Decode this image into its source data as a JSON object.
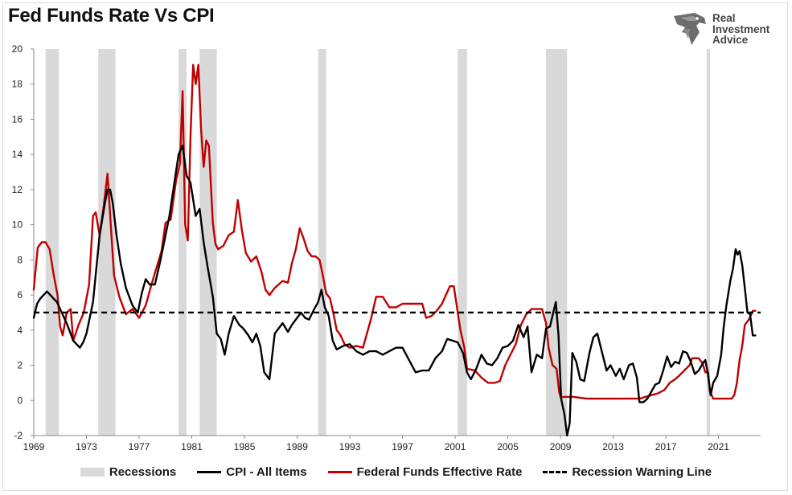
{
  "title": "Fed Funds Rate Vs CPI",
  "logo": {
    "lines": [
      "Real",
      "Investment",
      "Advice"
    ],
    "icon": "eagle-head-icon"
  },
  "colors": {
    "cpi": "#000000",
    "ffr": "#c00000",
    "recession": "#d9d9d9",
    "warning": "#000000"
  },
  "chart_data": {
    "type": "line",
    "title": "Fed Funds Rate Vs CPI",
    "xlabel": "",
    "ylabel": "",
    "xlim": [
      1969,
      2024.2
    ],
    "ylim": [
      -2,
      20
    ],
    "xticks": [
      1969,
      1973,
      1977,
      1981,
      1985,
      1989,
      1993,
      1997,
      2001,
      2005,
      2009,
      2013,
      2017,
      2021
    ],
    "yticks": [
      -2,
      0,
      2,
      4,
      6,
      8,
      10,
      12,
      14,
      16,
      18,
      20
    ],
    "grid": false,
    "legend_position": "bottom",
    "recessions": [
      [
        1969.9,
        1970.9
      ],
      [
        1973.9,
        1975.2
      ],
      [
        1980.0,
        1980.6
      ],
      [
        1981.6,
        1982.9
      ],
      [
        1990.6,
        1991.2
      ],
      [
        2001.2,
        2001.9
      ],
      [
        2007.9,
        2009.5
      ],
      [
        2020.1,
        2020.35
      ]
    ],
    "warning_level": 5,
    "series": [
      {
        "name": "CPI - All Items",
        "x": [
          1969.0,
          1969.25,
          1969.5,
          1969.75,
          1970.0,
          1970.25,
          1970.5,
          1970.75,
          1971.0,
          1971.5,
          1972.0,
          1972.5,
          1972.75,
          1973.0,
          1973.5,
          1974.0,
          1974.4,
          1974.6,
          1974.8,
          1975.0,
          1975.3,
          1975.6,
          1976.0,
          1976.5,
          1976.9,
          1977.2,
          1977.5,
          1977.8,
          1978.2,
          1978.6,
          1978.9,
          1979.3,
          1979.6,
          1980.0,
          1980.3,
          1980.6,
          1980.9,
          1981.3,
          1981.6,
          1981.9,
          1982.2,
          1982.6,
          1982.9,
          1983.2,
          1983.5,
          1983.8,
          1984.2,
          1984.6,
          1984.9,
          1985.3,
          1985.6,
          1985.9,
          1986.2,
          1986.5,
          1986.9,
          1987.3,
          1987.6,
          1987.9,
          1988.3,
          1988.6,
          1988.9,
          1989.3,
          1989.6,
          1989.9,
          1990.3,
          1990.6,
          1990.85,
          1991.1,
          1991.4,
          1991.7,
          1992.0,
          1992.5,
          1993.0,
          1993.5,
          1994.0,
          1994.5,
          1995.0,
          1995.5,
          1996.0,
          1996.5,
          1997.0,
          1997.5,
          1998.0,
          1998.5,
          1999.0,
          1999.5,
          2000.0,
          2000.4,
          2000.8,
          2001.2,
          2001.6,
          2001.9,
          2002.2,
          2002.6,
          2003.0,
          2003.4,
          2003.8,
          2004.2,
          2004.6,
          2005.0,
          2005.4,
          2005.8,
          2006.2,
          2006.5,
          2006.8,
          2007.2,
          2007.6,
          2007.9,
          2008.2,
          2008.45,
          2008.65,
          2008.85,
          2009.05,
          2009.3,
          2009.5,
          2009.7,
          2009.9,
          2010.2,
          2010.5,
          2010.8,
          2011.2,
          2011.5,
          2011.8,
          2012.2,
          2012.5,
          2012.8,
          2013.2,
          2013.5,
          2013.8,
          2014.2,
          2014.5,
          2014.8,
          2015.0,
          2015.3,
          2015.6,
          2015.9,
          2016.2,
          2016.5,
          2016.8,
          2017.1,
          2017.4,
          2017.7,
          2018.0,
          2018.3,
          2018.6,
          2018.9,
          2019.2,
          2019.5,
          2019.8,
          2020.0,
          2020.2,
          2020.4,
          2020.6,
          2020.9,
          2021.2,
          2021.4,
          2021.6,
          2021.9,
          2022.1,
          2022.3,
          2022.45,
          2022.6,
          2022.8,
          2023.0,
          2023.2,
          2023.4,
          2023.6,
          2023.8
        ],
        "values": [
          4.7,
          5.5,
          5.8,
          6.0,
          6.2,
          6.0,
          5.8,
          5.6,
          5.2,
          4.4,
          3.4,
          3.0,
          3.3,
          3.8,
          5.6,
          9.4,
          11.2,
          12.0,
          12.0,
          11.2,
          9.3,
          7.8,
          6.4,
          5.4,
          5.0,
          6.1,
          6.9,
          6.6,
          6.6,
          7.9,
          9.0,
          10.5,
          12.0,
          14.0,
          14.5,
          12.8,
          12.4,
          10.5,
          10.9,
          9.0,
          7.6,
          5.9,
          3.8,
          3.5,
          2.6,
          3.8,
          4.8,
          4.3,
          4.1,
          3.7,
          3.3,
          3.8,
          3.1,
          1.6,
          1.2,
          3.8,
          4.1,
          4.4,
          3.9,
          4.3,
          4.6,
          5.0,
          4.7,
          4.6,
          5.2,
          5.6,
          6.3,
          5.3,
          4.8,
          3.4,
          2.9,
          3.1,
          3.2,
          2.8,
          2.6,
          2.8,
          2.8,
          2.6,
          2.8,
          3.0,
          3.0,
          2.3,
          1.6,
          1.7,
          1.7,
          2.4,
          2.8,
          3.5,
          3.4,
          3.3,
          2.7,
          1.6,
          1.2,
          1.8,
          2.6,
          2.1,
          2.0,
          2.4,
          3.0,
          3.1,
          3.4,
          4.3,
          3.6,
          4.2,
          1.6,
          2.6,
          2.4,
          4.1,
          4.2,
          5.0,
          5.6,
          3.7,
          0.1,
          -0.8,
          -2.0,
          -1.3,
          2.7,
          2.2,
          1.2,
          1.1,
          2.7,
          3.6,
          3.8,
          2.6,
          1.7,
          2.0,
          1.4,
          1.8,
          1.2,
          2.0,
          2.1,
          1.3,
          -0.1,
          -0.1,
          0.1,
          0.5,
          0.9,
          1.0,
          1.7,
          2.5,
          1.9,
          2.2,
          2.1,
          2.8,
          2.7,
          2.2,
          1.5,
          1.7,
          2.1,
          2.3,
          1.5,
          0.3,
          1.0,
          1.4,
          2.6,
          4.2,
          5.4,
          6.8,
          7.5,
          8.6,
          8.3,
          8.5,
          7.7,
          6.4,
          5.0,
          4.9,
          3.7,
          3.7
        ]
      },
      {
        "name": "Federal Funds Effective Rate",
        "x": [
          1969.0,
          1969.3,
          1969.6,
          1969.9,
          1970.2,
          1970.5,
          1970.8,
          1971.0,
          1971.2,
          1971.5,
          1971.8,
          1972.0,
          1972.4,
          1972.8,
          1973.2,
          1973.5,
          1973.7,
          1974.0,
          1974.3,
          1974.6,
          1974.9,
          1975.1,
          1975.5,
          1976.0,
          1976.5,
          1977.0,
          1977.5,
          1977.9,
          1978.3,
          1978.7,
          1979.0,
          1979.4,
          1979.8,
          1980.1,
          1980.3,
          1980.5,
          1980.7,
          1980.9,
          1981.1,
          1981.3,
          1981.5,
          1981.7,
          1981.9,
          1982.1,
          1982.3,
          1982.6,
          1982.8,
          1983.0,
          1983.4,
          1983.8,
          1984.2,
          1984.5,
          1984.8,
          1985.1,
          1985.5,
          1985.9,
          1986.3,
          1986.6,
          1986.9,
          1987.3,
          1987.6,
          1987.9,
          1988.3,
          1988.6,
          1988.9,
          1989.2,
          1989.5,
          1989.8,
          1990.1,
          1990.4,
          1990.7,
          1990.9,
          1991.2,
          1991.5,
          1991.8,
          1992.0,
          1992.3,
          1992.6,
          1993.0,
          1993.5,
          1994.0,
          1994.3,
          1994.6,
          1995.0,
          1995.5,
          1996.0,
          1996.5,
          1997.0,
          1997.5,
          1998.0,
          1998.5,
          1998.8,
          1999.2,
          1999.6,
          2000.0,
          2000.3,
          2000.6,
          2000.9,
          2001.1,
          2001.4,
          2001.7,
          2001.9,
          2002.5,
          2003.0,
          2003.5,
          2004.0,
          2004.4,
          2004.8,
          2005.2,
          2005.6,
          2006.0,
          2006.4,
          2006.8,
          2007.2,
          2007.6,
          2007.9,
          2008.1,
          2008.4,
          2008.7,
          2008.9,
          2009.0,
          2010.0,
          2011.0,
          2012.0,
          2013.0,
          2014.0,
          2015.0,
          2015.9,
          2016.4,
          2016.9,
          2017.3,
          2017.7,
          2018.0,
          2018.4,
          2018.8,
          2019.0,
          2019.5,
          2019.8,
          2020.0,
          2020.2,
          2020.35,
          2020.6,
          2021.0,
          2021.5,
          2022.0,
          2022.2,
          2022.4,
          2022.6,
          2022.8,
          2023.0,
          2023.3,
          2023.6,
          2023.8
        ],
        "values": [
          6.3,
          8.7,
          9.0,
          9.0,
          8.6,
          7.2,
          6.0,
          4.2,
          3.7,
          5.0,
          5.2,
          3.4,
          4.3,
          5.0,
          6.6,
          10.5,
          10.7,
          9.4,
          11.0,
          12.9,
          9.4,
          7.1,
          5.9,
          4.9,
          5.2,
          4.7,
          5.4,
          6.5,
          7.5,
          8.5,
          10.1,
          10.3,
          12.5,
          13.5,
          17.6,
          10.0,
          9.1,
          15.0,
          19.1,
          18.0,
          19.1,
          15.5,
          13.3,
          14.8,
          14.5,
          10.1,
          8.9,
          8.6,
          8.8,
          9.4,
          9.6,
          11.4,
          9.7,
          8.4,
          7.9,
          8.2,
          7.3,
          6.3,
          6.0,
          6.4,
          6.6,
          6.8,
          6.7,
          7.8,
          8.6,
          9.8,
          9.2,
          8.5,
          8.2,
          8.2,
          8.0,
          7.3,
          6.1,
          5.8,
          4.8,
          4.0,
          3.7,
          3.2,
          3.0,
          3.1,
          3.0,
          3.8,
          4.6,
          5.9,
          5.9,
          5.3,
          5.3,
          5.5,
          5.5,
          5.5,
          5.5,
          4.7,
          4.8,
          5.1,
          5.5,
          6.0,
          6.5,
          6.5,
          5.5,
          4.0,
          3.0,
          1.8,
          1.7,
          1.3,
          1.0,
          1.0,
          1.1,
          2.0,
          2.6,
          3.2,
          4.3,
          4.9,
          5.2,
          5.2,
          5.2,
          4.4,
          3.0,
          2.0,
          1.8,
          0.5,
          0.2,
          0.2,
          0.1,
          0.1,
          0.1,
          0.1,
          0.1,
          0.3,
          0.4,
          0.6,
          1.0,
          1.2,
          1.4,
          1.7,
          2.0,
          2.4,
          2.4,
          2.1,
          1.6,
          1.6,
          0.5,
          0.1,
          0.1,
          0.1,
          0.1,
          0.3,
          1.0,
          2.3,
          3.1,
          4.3,
          4.6,
          5.1,
          5.1
        ]
      }
    ]
  },
  "legend": [
    {
      "key": "recessions",
      "label": "Recessions"
    },
    {
      "key": "cpi",
      "label": "CPI - All Items"
    },
    {
      "key": "ffr",
      "label": "Federal Funds Effective Rate"
    },
    {
      "key": "warning",
      "label": "Recession Warning Line"
    }
  ]
}
